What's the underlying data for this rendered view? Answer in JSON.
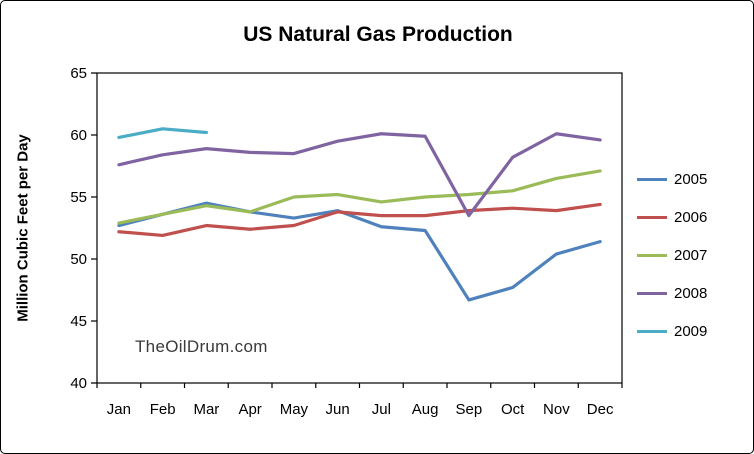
{
  "chart_data": {
    "type": "line",
    "title": "US Natural Gas Production",
    "xlabel": "",
    "ylabel": "Million Cubic Feet per Day",
    "categories": [
      "Jan",
      "Feb",
      "Mar",
      "Apr",
      "May",
      "Jun",
      "Jul",
      "Aug",
      "Sep",
      "Oct",
      "Nov",
      "Dec"
    ],
    "ylim": [
      40,
      65
    ],
    "ytick_step": 5,
    "ytick_labels": [
      "40",
      "45",
      "50",
      "55",
      "60",
      "65"
    ],
    "grid": false,
    "legend_position": "right",
    "watermark": "TheOilDrum.com",
    "series": [
      {
        "name": "2005",
        "color": "#4F81BD",
        "values": [
          52.7,
          53.6,
          54.5,
          53.8,
          53.3,
          53.9,
          52.6,
          52.3,
          46.7,
          47.7,
          50.4,
          51.4
        ]
      },
      {
        "name": "2006",
        "color": "#C0504D",
        "values": [
          52.2,
          51.9,
          52.7,
          52.4,
          52.7,
          53.8,
          53.5,
          53.5,
          53.9,
          54.1,
          53.9,
          54.4
        ]
      },
      {
        "name": "2007",
        "color": "#9BBB59",
        "values": [
          52.9,
          53.6,
          54.3,
          53.8,
          55.0,
          55.2,
          54.6,
          55.0,
          55.2,
          55.5,
          56.5,
          57.1
        ]
      },
      {
        "name": "2008",
        "color": "#8064A2",
        "values": [
          57.6,
          58.4,
          58.9,
          58.6,
          58.5,
          59.5,
          60.1,
          59.9,
          53.5,
          58.2,
          60.1,
          59.6
        ]
      },
      {
        "name": "2009",
        "color": "#4BACC6",
        "values": [
          59.8,
          60.5,
          60.2,
          null,
          null,
          null,
          null,
          null,
          null,
          null,
          null,
          null
        ]
      }
    ]
  }
}
